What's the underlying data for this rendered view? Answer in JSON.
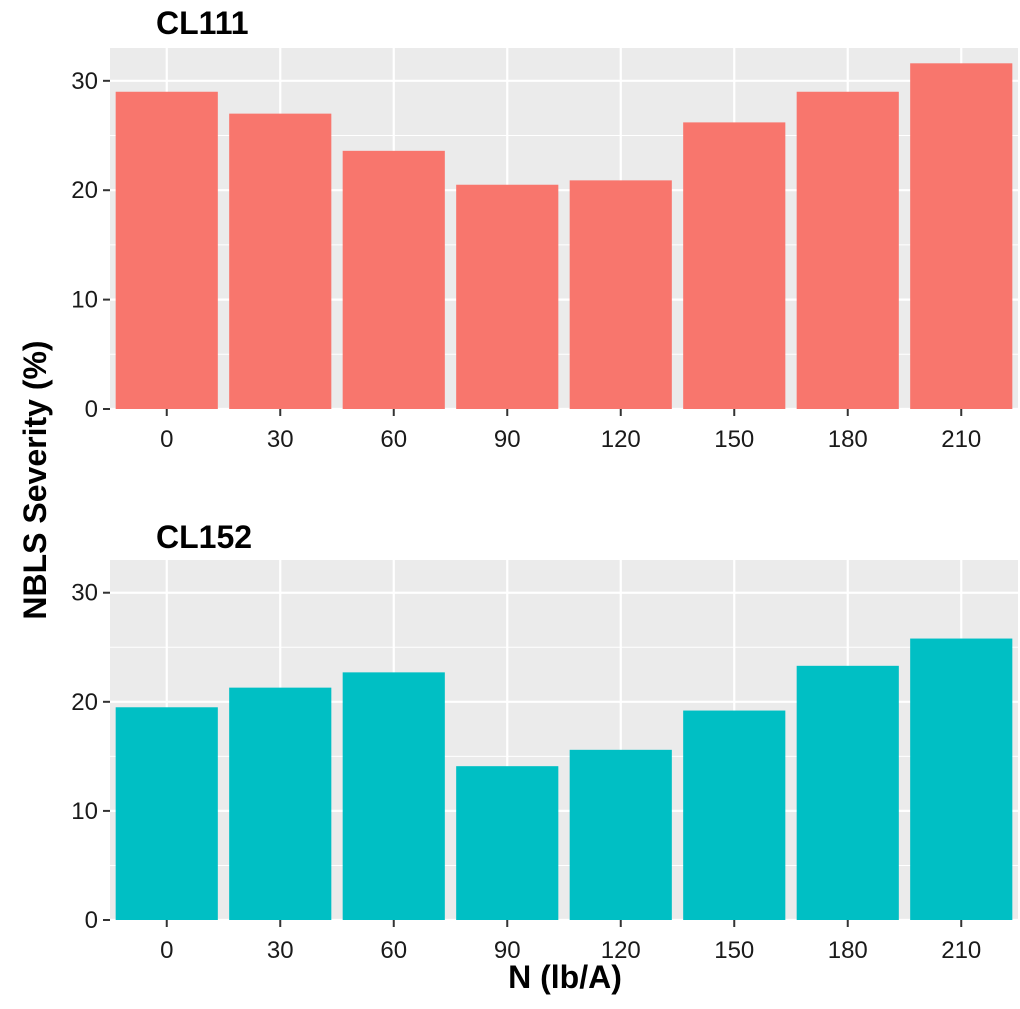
{
  "chart_data": {
    "type": "bar",
    "layout": "faceted",
    "ylabel": "NBLS Severity (%)",
    "xlabel": "N (lb/A)",
    "categories": [
      "0",
      "30",
      "60",
      "90",
      "120",
      "150",
      "180",
      "210"
    ],
    "ylim": [
      0,
      33
    ],
    "yticks": [
      0,
      10,
      20,
      30
    ],
    "grid": true,
    "legend": "none",
    "panels": [
      {
        "title": "CL111",
        "color": "#F8766D",
        "values": [
          29.0,
          27.0,
          23.6,
          20.5,
          20.9,
          26.2,
          29.0,
          31.6
        ]
      },
      {
        "title": "CL152",
        "color": "#00BFC4",
        "values": [
          19.5,
          21.3,
          22.7,
          14.1,
          15.6,
          19.2,
          23.3,
          25.8
        ]
      }
    ]
  },
  "colors": {
    "panel_background": "#EBEBEB",
    "grid_line": "#FFFFFF",
    "tick_mark": "#333333"
  }
}
